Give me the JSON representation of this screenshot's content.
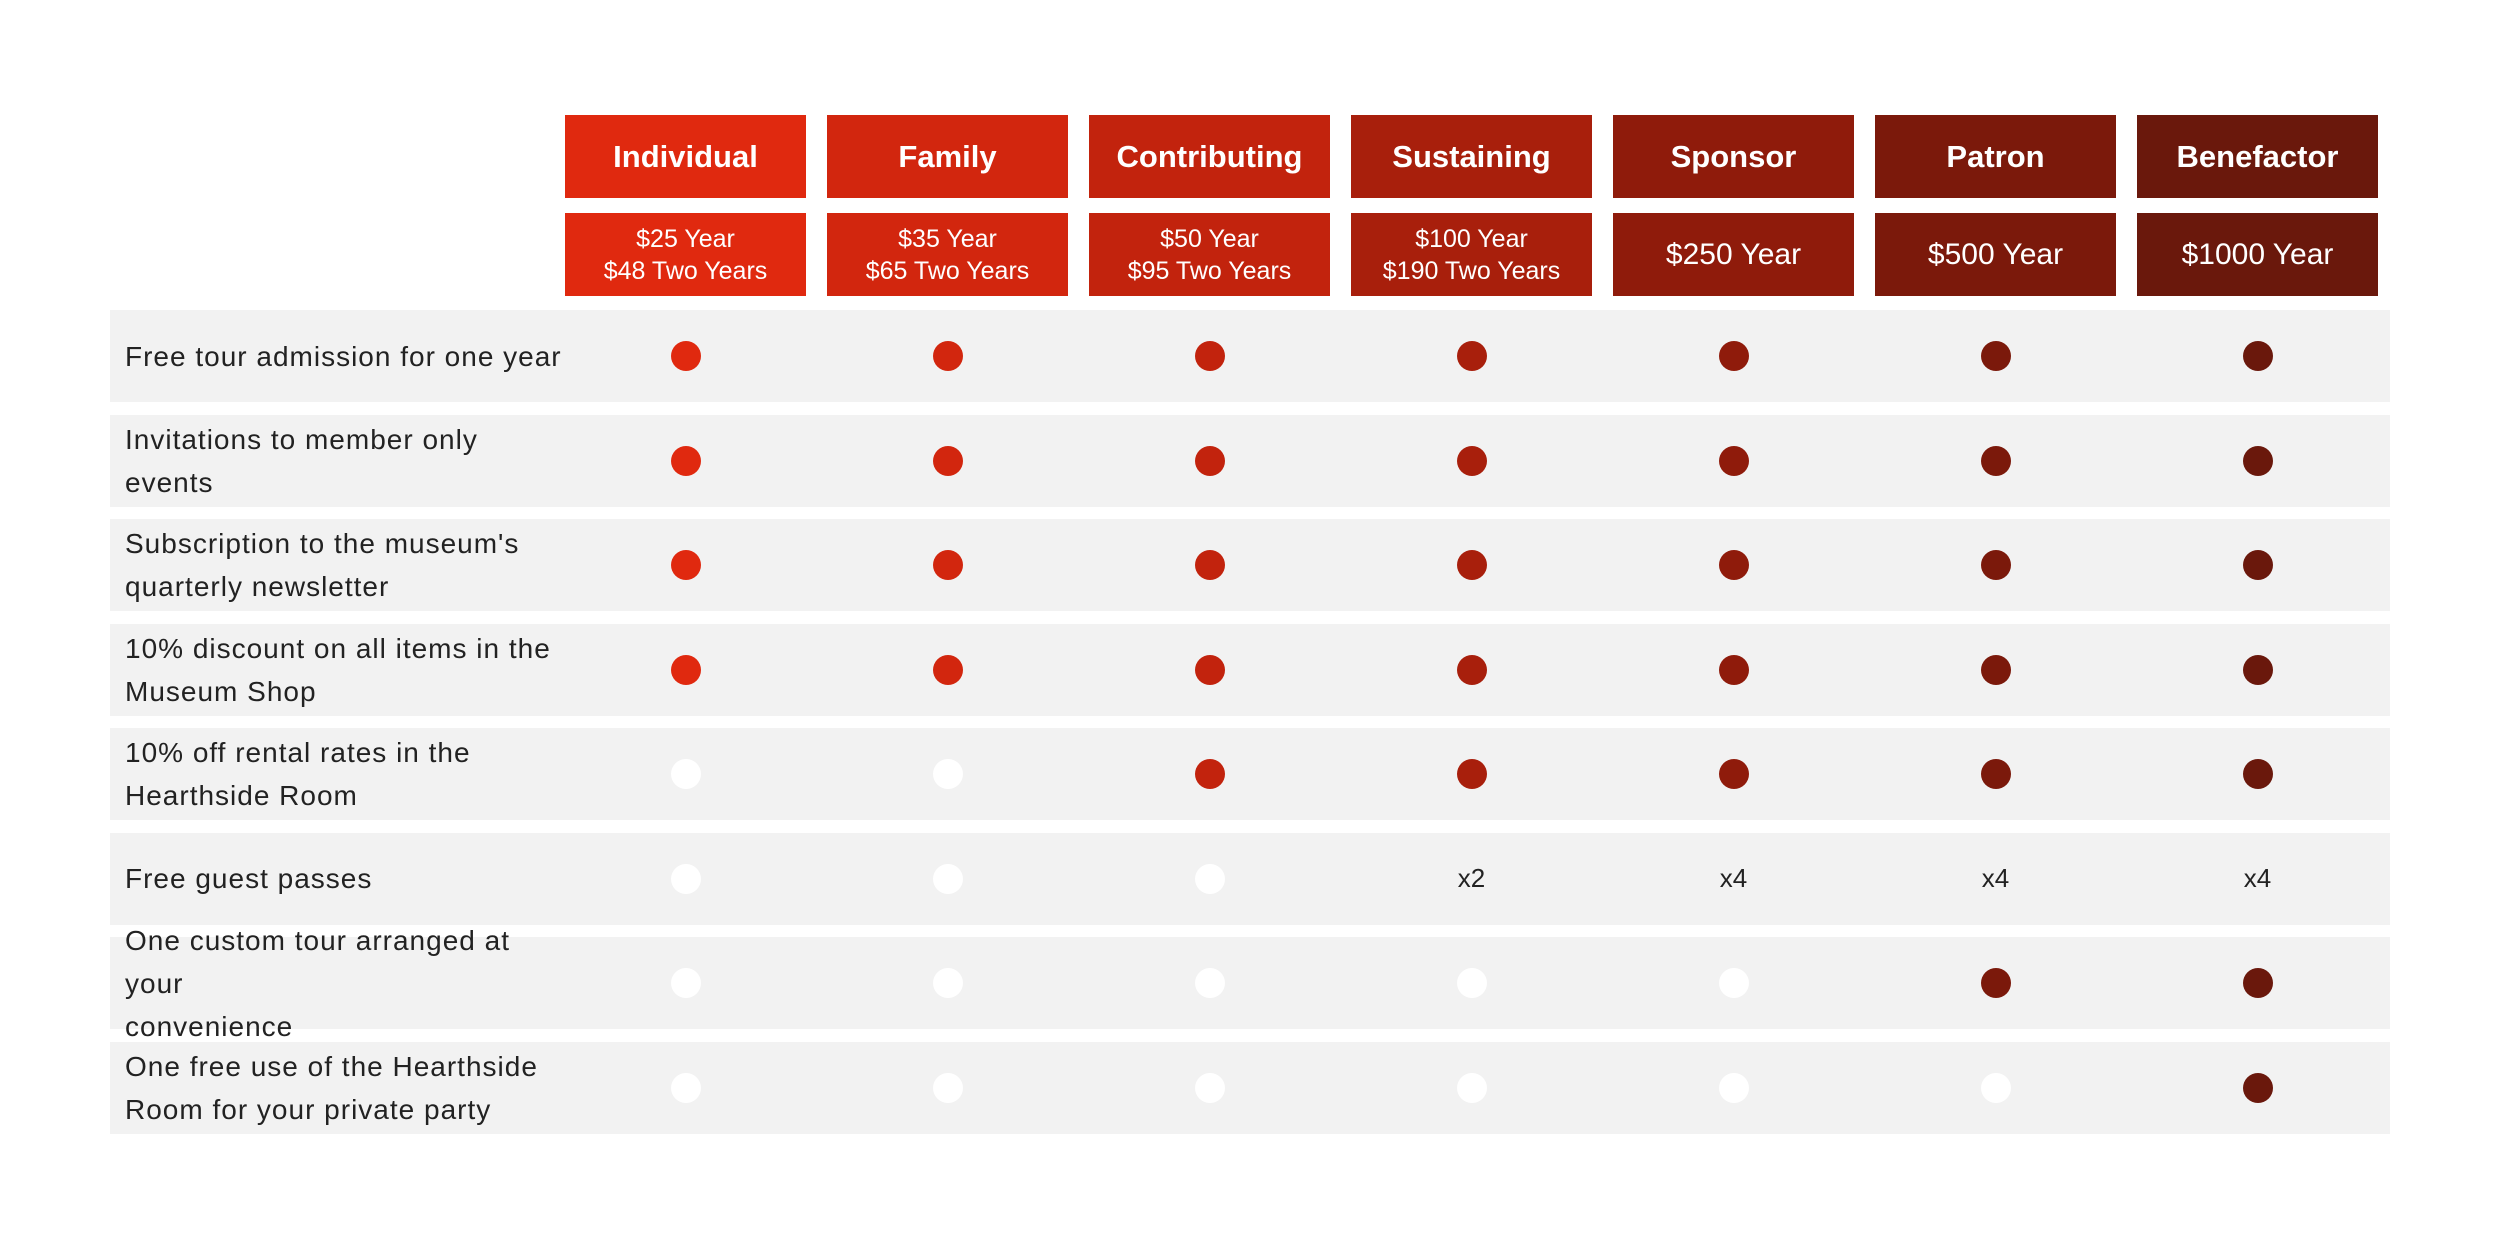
{
  "table": {
    "tiers": [
      {
        "name": "Individual",
        "price": [
          "$25 Year",
          "$48 Two Years"
        ],
        "color": "#e0290f"
      },
      {
        "name": "Family",
        "price": [
          "$35 Year",
          "$65 Two Years"
        ],
        "color": "#d2260e"
      },
      {
        "name": "Contributing",
        "price": [
          "$50 Year",
          "$95 Two Years"
        ],
        "color": "#c2230d"
      },
      {
        "name": "Sustaining",
        "price": [
          "$100 Year",
          "$190 Two Years"
        ],
        "color": "#a81f0c"
      },
      {
        "name": "Sponsor",
        "price": [
          "$250 Year"
        ],
        "color": "#8f1b0b"
      },
      {
        "name": "Patron",
        "price": [
          "$500 Year"
        ],
        "color": "#7b190b"
      },
      {
        "name": "Benefactor",
        "price": [
          "$1000 Year"
        ],
        "color": "#6a180c"
      }
    ],
    "rows": [
      {
        "label": [
          "Free tour admission for one year"
        ],
        "cells": [
          true,
          true,
          true,
          true,
          true,
          true,
          true
        ]
      },
      {
        "label": [
          "Invitations to member only events"
        ],
        "cells": [
          true,
          true,
          true,
          true,
          true,
          true,
          true
        ]
      },
      {
        "label": [
          "Subscription to the museum's",
          "quarterly newsletter"
        ],
        "cells": [
          true,
          true,
          true,
          true,
          true,
          true,
          true
        ]
      },
      {
        "label": [
          "10% discount on all items in the",
          "Museum Shop"
        ],
        "cells": [
          true,
          true,
          true,
          true,
          true,
          true,
          true
        ]
      },
      {
        "label": [
          "10% off rental rates in the",
          "Hearthside Room"
        ],
        "cells": [
          false,
          false,
          true,
          true,
          true,
          true,
          true
        ]
      },
      {
        "label": [
          "Free guest passes"
        ],
        "cells": [
          false,
          false,
          false,
          "x2",
          "x4",
          "x4",
          "x4"
        ]
      },
      {
        "label": [
          "One custom tour arranged at your",
          "convenience"
        ],
        "cells": [
          false,
          false,
          false,
          false,
          false,
          true,
          true
        ]
      },
      {
        "label": [
          "One free use of the Hearthside",
          "Room for your private party"
        ],
        "cells": [
          false,
          false,
          false,
          false,
          false,
          false,
          true
        ]
      }
    ]
  }
}
